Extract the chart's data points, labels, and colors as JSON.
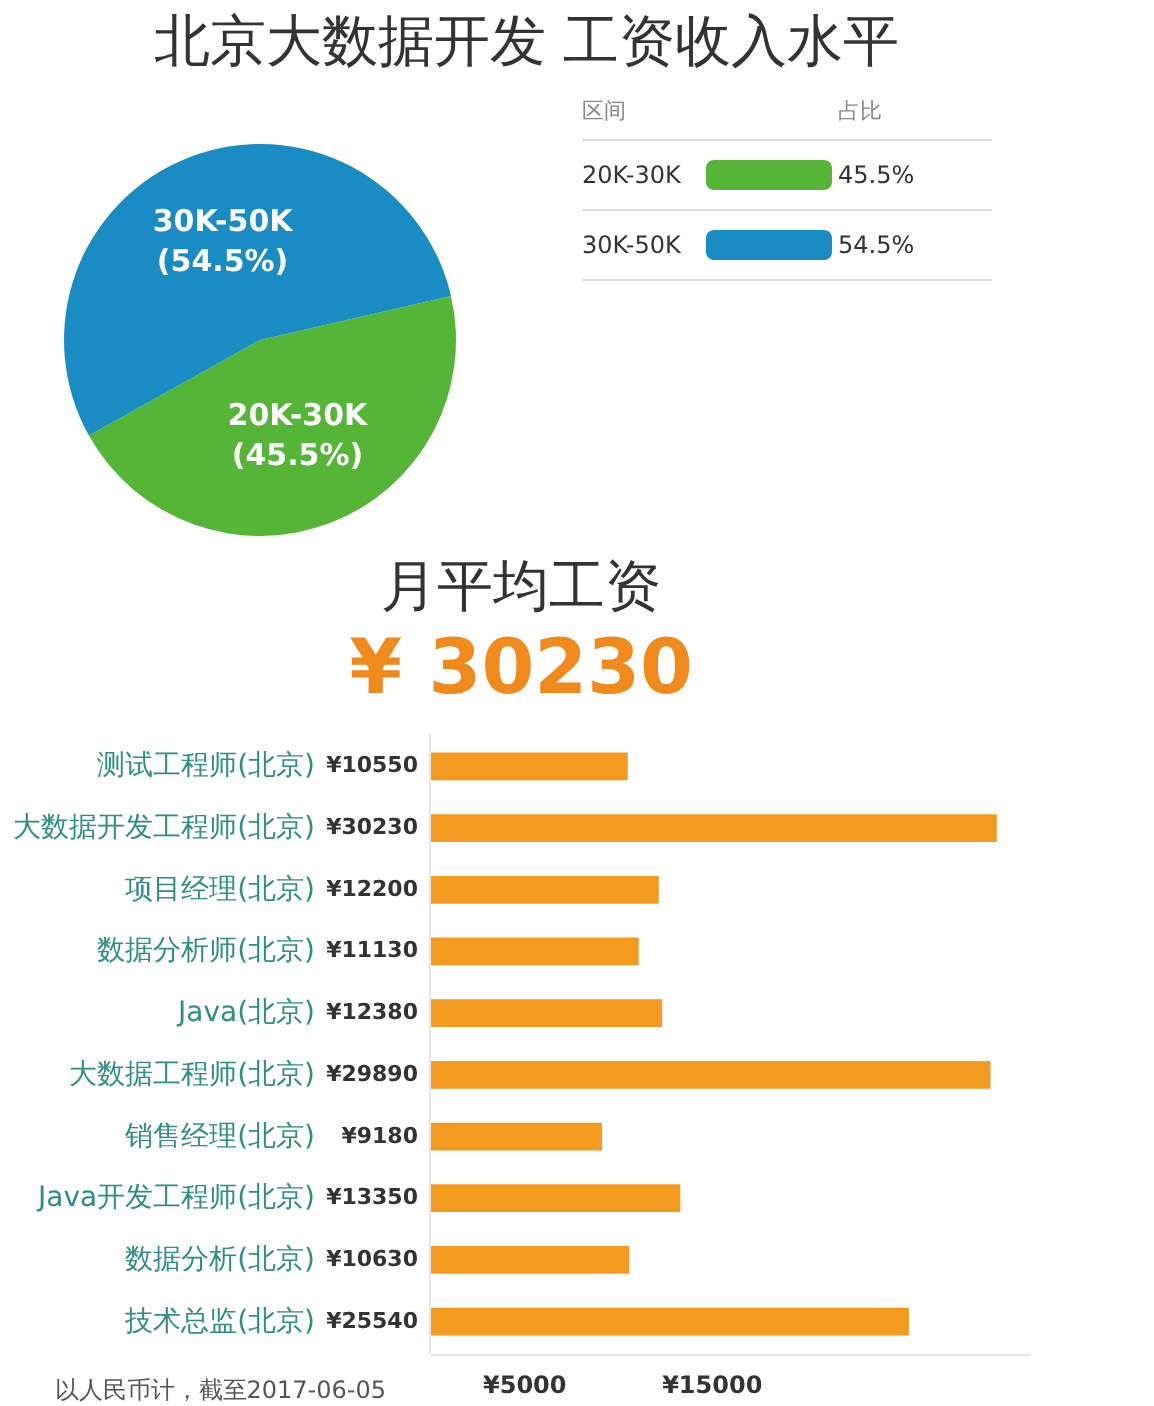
{
  "chart_data": [
    {
      "type": "pie",
      "title": "北京大数据开发 工资收入水平",
      "categories": [
        "20K-30K",
        "30K-50K"
      ],
      "values": [
        45.5,
        54.5
      ],
      "colors": [
        "#55b537",
        "#1a8cc4"
      ],
      "value_labels": [
        "(45.5%)",
        "(54.5%)"
      ],
      "legend_title": "区间",
      "annotations": [
        "占比",
        "45.5%",
        "54.5%"
      ]
    },
    {
      "type": "bar",
      "orientation": "horizontal",
      "title": "月平均工资",
      "subtitle": "¥ 30230",
      "categories": [
        "测试工程师(北京)",
        "大数据开发工程师(北京)",
        "项目经理(北京)",
        "数据分析师(北京)",
        "Java(北京)",
        "大数据工程师(北京)",
        "销售经理(北京)",
        "Java开发工程师(北京)",
        "数据分析(北京)",
        "技术总监(北京)"
      ],
      "values": [
        10550,
        30230,
        12200,
        11130,
        12380,
        29890,
        9180,
        13350,
        10630,
        25540
      ],
      "value_labels": [
        "¥10550",
        "¥30230",
        "¥12200",
        "¥11130",
        "¥12380",
        "¥29890",
        "¥9180",
        "¥13350",
        "¥10630",
        "¥25540"
      ],
      "color": "#f39a1f",
      "xlim": [
        0,
        32000
      ],
      "xticks": [
        {
          "value": 5000,
          "label": "¥5000"
        },
        {
          "value": 15000,
          "label": "¥15000"
        }
      ],
      "annotations": [
        "以人民币计，截至2017-06-05"
      ]
    }
  ]
}
